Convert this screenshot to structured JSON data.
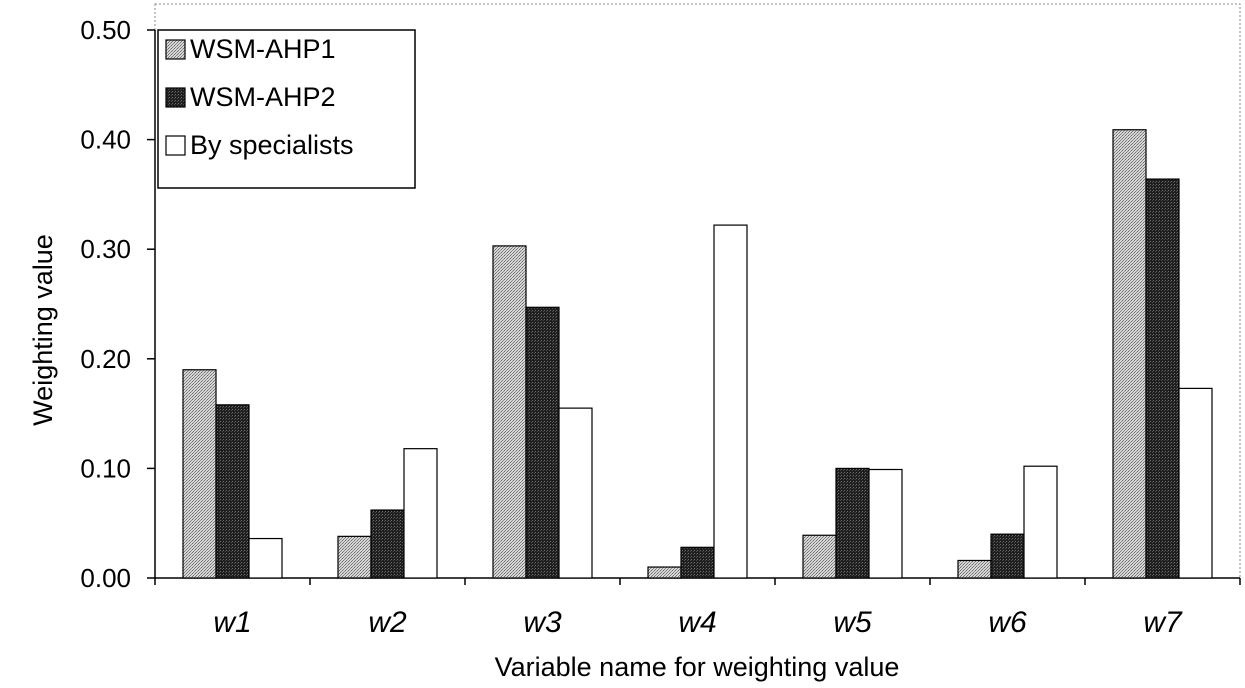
{
  "chart_data": {
    "type": "bar",
    "title": "",
    "xlabel": "Variable name for weighting value",
    "ylabel": "Weighting value",
    "ylim": [
      0,
      0.5
    ],
    "yticks": [
      "0.00",
      "0.10",
      "0.20",
      "0.30",
      "0.40",
      "0.50"
    ],
    "categories": [
      "w1",
      "w2",
      "w3",
      "w4",
      "w5",
      "w6",
      "w7"
    ],
    "series": [
      {
        "name": "WSM-AHP1",
        "values": [
          0.19,
          0.038,
          0.303,
          0.01,
          0.039,
          0.016,
          0.409
        ],
        "color": "#b4b4b4",
        "pattern": "dotted-gray"
      },
      {
        "name": "WSM-AHP2",
        "values": [
          0.158,
          0.062,
          0.247,
          0.028,
          0.1,
          0.04,
          0.364
        ],
        "color": "#2b2b2b",
        "pattern": "dark-gray"
      },
      {
        "name": "By specialists",
        "values": [
          0.036,
          0.118,
          0.155,
          0.322,
          0.099,
          0.102,
          0.173
        ],
        "color": "#ffffff",
        "pattern": "white"
      }
    ],
    "legend": "top-left",
    "grid": false
  }
}
